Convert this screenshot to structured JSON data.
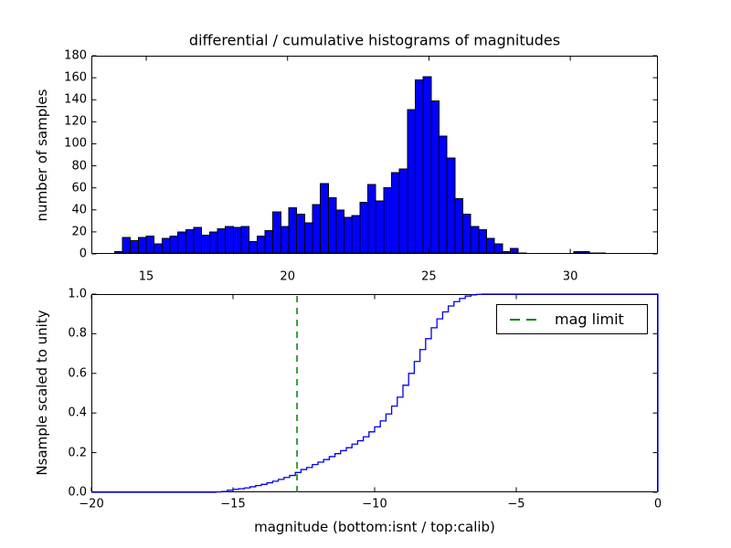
{
  "figure": {
    "title": "differential / cumulative histograms of magnitudes",
    "background": "#ffffff"
  },
  "colors": {
    "bar_fill": "#0000ff",
    "bar_edge": "#000000",
    "cumulative_line": "#0000ee",
    "mag_limit_line": "#008000",
    "axis": "#000000",
    "text": "#000000"
  },
  "chart_data": [
    {
      "type": "bar",
      "subplot": "top",
      "title": "differential / cumulative histograms of magnitudes",
      "ylabel": "number of samples",
      "xlabel": "",
      "xlim": [
        13.06,
        33.1
      ],
      "ylim": [
        0,
        180
      ],
      "grid": false,
      "xticks": [
        15,
        20,
        25,
        30
      ],
      "xtick_labels": [
        "15",
        "20",
        "25",
        "30"
      ],
      "yticks": [
        0,
        20,
        40,
        60,
        80,
        100,
        120,
        140,
        160,
        180
      ],
      "ytick_labels": [
        "0",
        "20",
        "40",
        "60",
        "80",
        "100",
        "120",
        "140",
        "160",
        "180"
      ],
      "bins": {
        "start": 13.88,
        "width": 0.28
      },
      "values": [
        2,
        15,
        12,
        15,
        16,
        9,
        14,
        16,
        20,
        22,
        24,
        17,
        20,
        23,
        25,
        24,
        25,
        11,
        16,
        21,
        38,
        25,
        42,
        36,
        28,
        45,
        64,
        51,
        40,
        33,
        35,
        47,
        63,
        48,
        60,
        74,
        77,
        131,
        158,
        161,
        139,
        107,
        87,
        50,
        36,
        25,
        22,
        14,
        9,
        2,
        5,
        1,
        0,
        0,
        0,
        0,
        0,
        0,
        2,
        2,
        1,
        1
      ]
    },
    {
      "type": "line",
      "subplot": "bottom",
      "style": "step-cumulative",
      "ylabel": "Nsample scaled to unity",
      "xlabel": "magnitude (bottom:isnt / top:calib)",
      "xlim": [
        -20,
        0
      ],
      "ylim": [
        0,
        1.0
      ],
      "grid": false,
      "xticks": [
        -20,
        -15,
        -10,
        -5,
        0
      ],
      "xtick_labels": [
        "−20",
        "−15",
        "−10",
        "−5",
        "0"
      ],
      "yticks": [
        0,
        0.2,
        0.4,
        0.6,
        0.8,
        1.0
      ],
      "ytick_labels": [
        "0.0",
        "0.2",
        "0.4",
        "0.6",
        "0.8",
        "1.0"
      ],
      "step": {
        "x_start": -16.0,
        "x_step": 0.2,
        "y": [
          0.0,
          0.0,
          0.002,
          0.004,
          0.01,
          0.015,
          0.018,
          0.022,
          0.028,
          0.034,
          0.04,
          0.048,
          0.056,
          0.065,
          0.075,
          0.085,
          0.1,
          0.115,
          0.125,
          0.14,
          0.152,
          0.165,
          0.18,
          0.195,
          0.21,
          0.225,
          0.243,
          0.26,
          0.28,
          0.305,
          0.33,
          0.36,
          0.395,
          0.435,
          0.48,
          0.54,
          0.6,
          0.66,
          0.72,
          0.775,
          0.83,
          0.875,
          0.91,
          0.94,
          0.962,
          0.978,
          0.99,
          0.996,
          0.999,
          1.0,
          1.0
        ]
      },
      "mag_limit": {
        "x": -12.74,
        "linestyle": "dashed"
      },
      "legend": {
        "label": "mag limit",
        "location": "upper right"
      }
    }
  ]
}
